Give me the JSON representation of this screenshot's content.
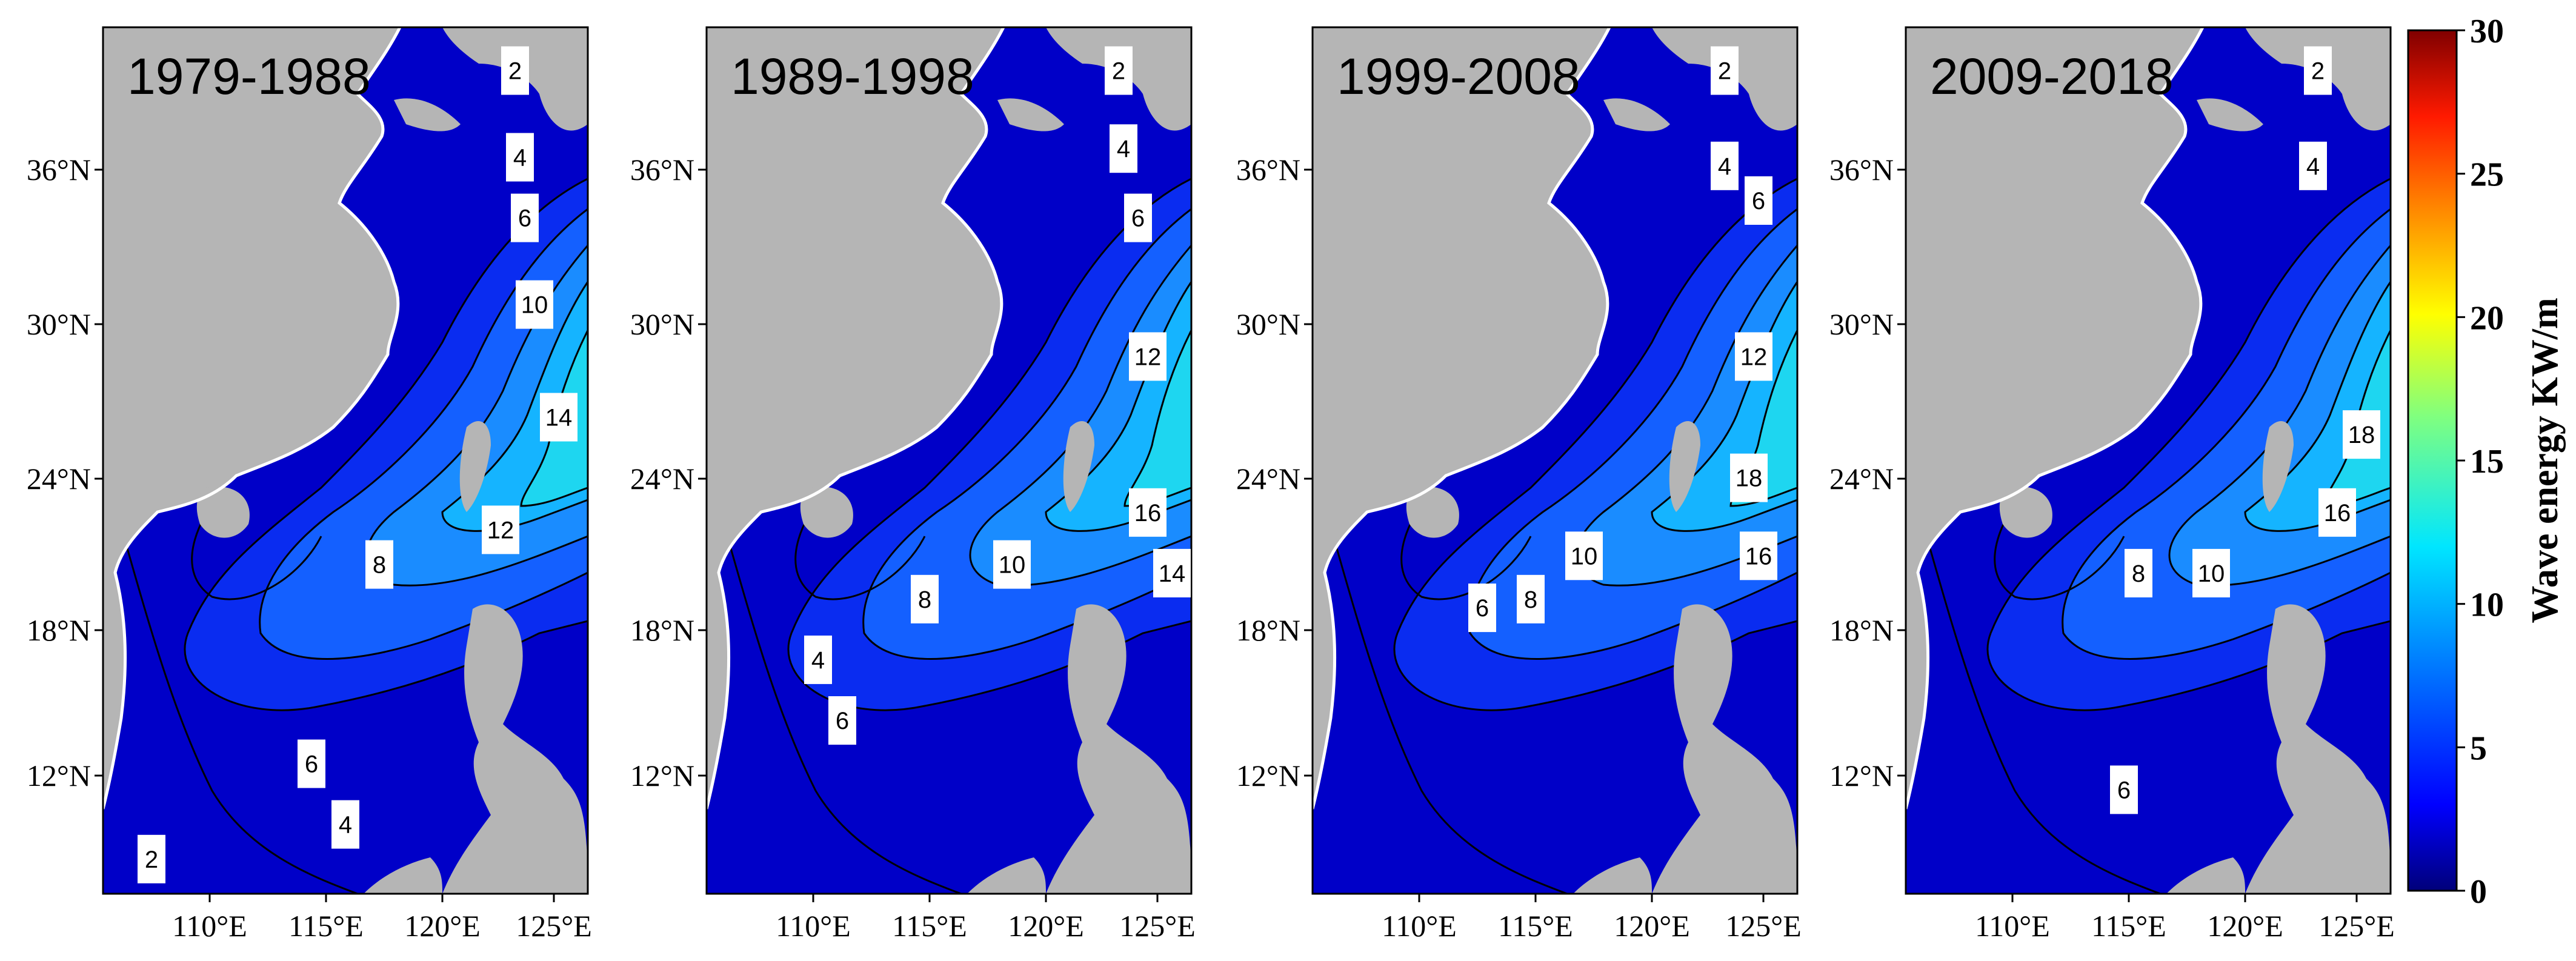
{
  "figure": {
    "panels": [
      {
        "title": "1979-1988",
        "contour_labels": [
          "2",
          "4",
          "6",
          "10",
          "14",
          "12",
          "8",
          "6",
          "4",
          "2"
        ]
      },
      {
        "title": "1989-1998",
        "contour_labels": [
          "2",
          "4",
          "6",
          "12",
          "16",
          "14",
          "10",
          "8",
          "4",
          "6"
        ]
      },
      {
        "title": "1999-2008",
        "contour_labels": [
          "2",
          "4",
          "6",
          "12",
          "18",
          "16",
          "10",
          "8",
          "6"
        ]
      },
      {
        "title": "2009-2018",
        "contour_labels": [
          "2",
          "4",
          "18",
          "16",
          "10",
          "8",
          "6"
        ]
      }
    ],
    "lat_ticks": [
      "36°N",
      "30°N",
      "24°N",
      "18°N",
      "12°N"
    ],
    "lon_ticks": [
      "110°E",
      "115°E",
      "120°E",
      "125°E"
    ],
    "colorbar": {
      "title": "Wave energy KW/m",
      "ticks": [
        "30",
        "25",
        "20",
        "15",
        "10",
        "5",
        "0"
      ],
      "range": [
        0,
        30
      ],
      "colors": [
        "#00008b",
        "#0000ff",
        "#0080ff",
        "#00ffff",
        "#80ff80",
        "#ffff00",
        "#ff8000",
        "#ff0000",
        "#800000"
      ]
    },
    "land_color": "#b5b5b5"
  }
}
